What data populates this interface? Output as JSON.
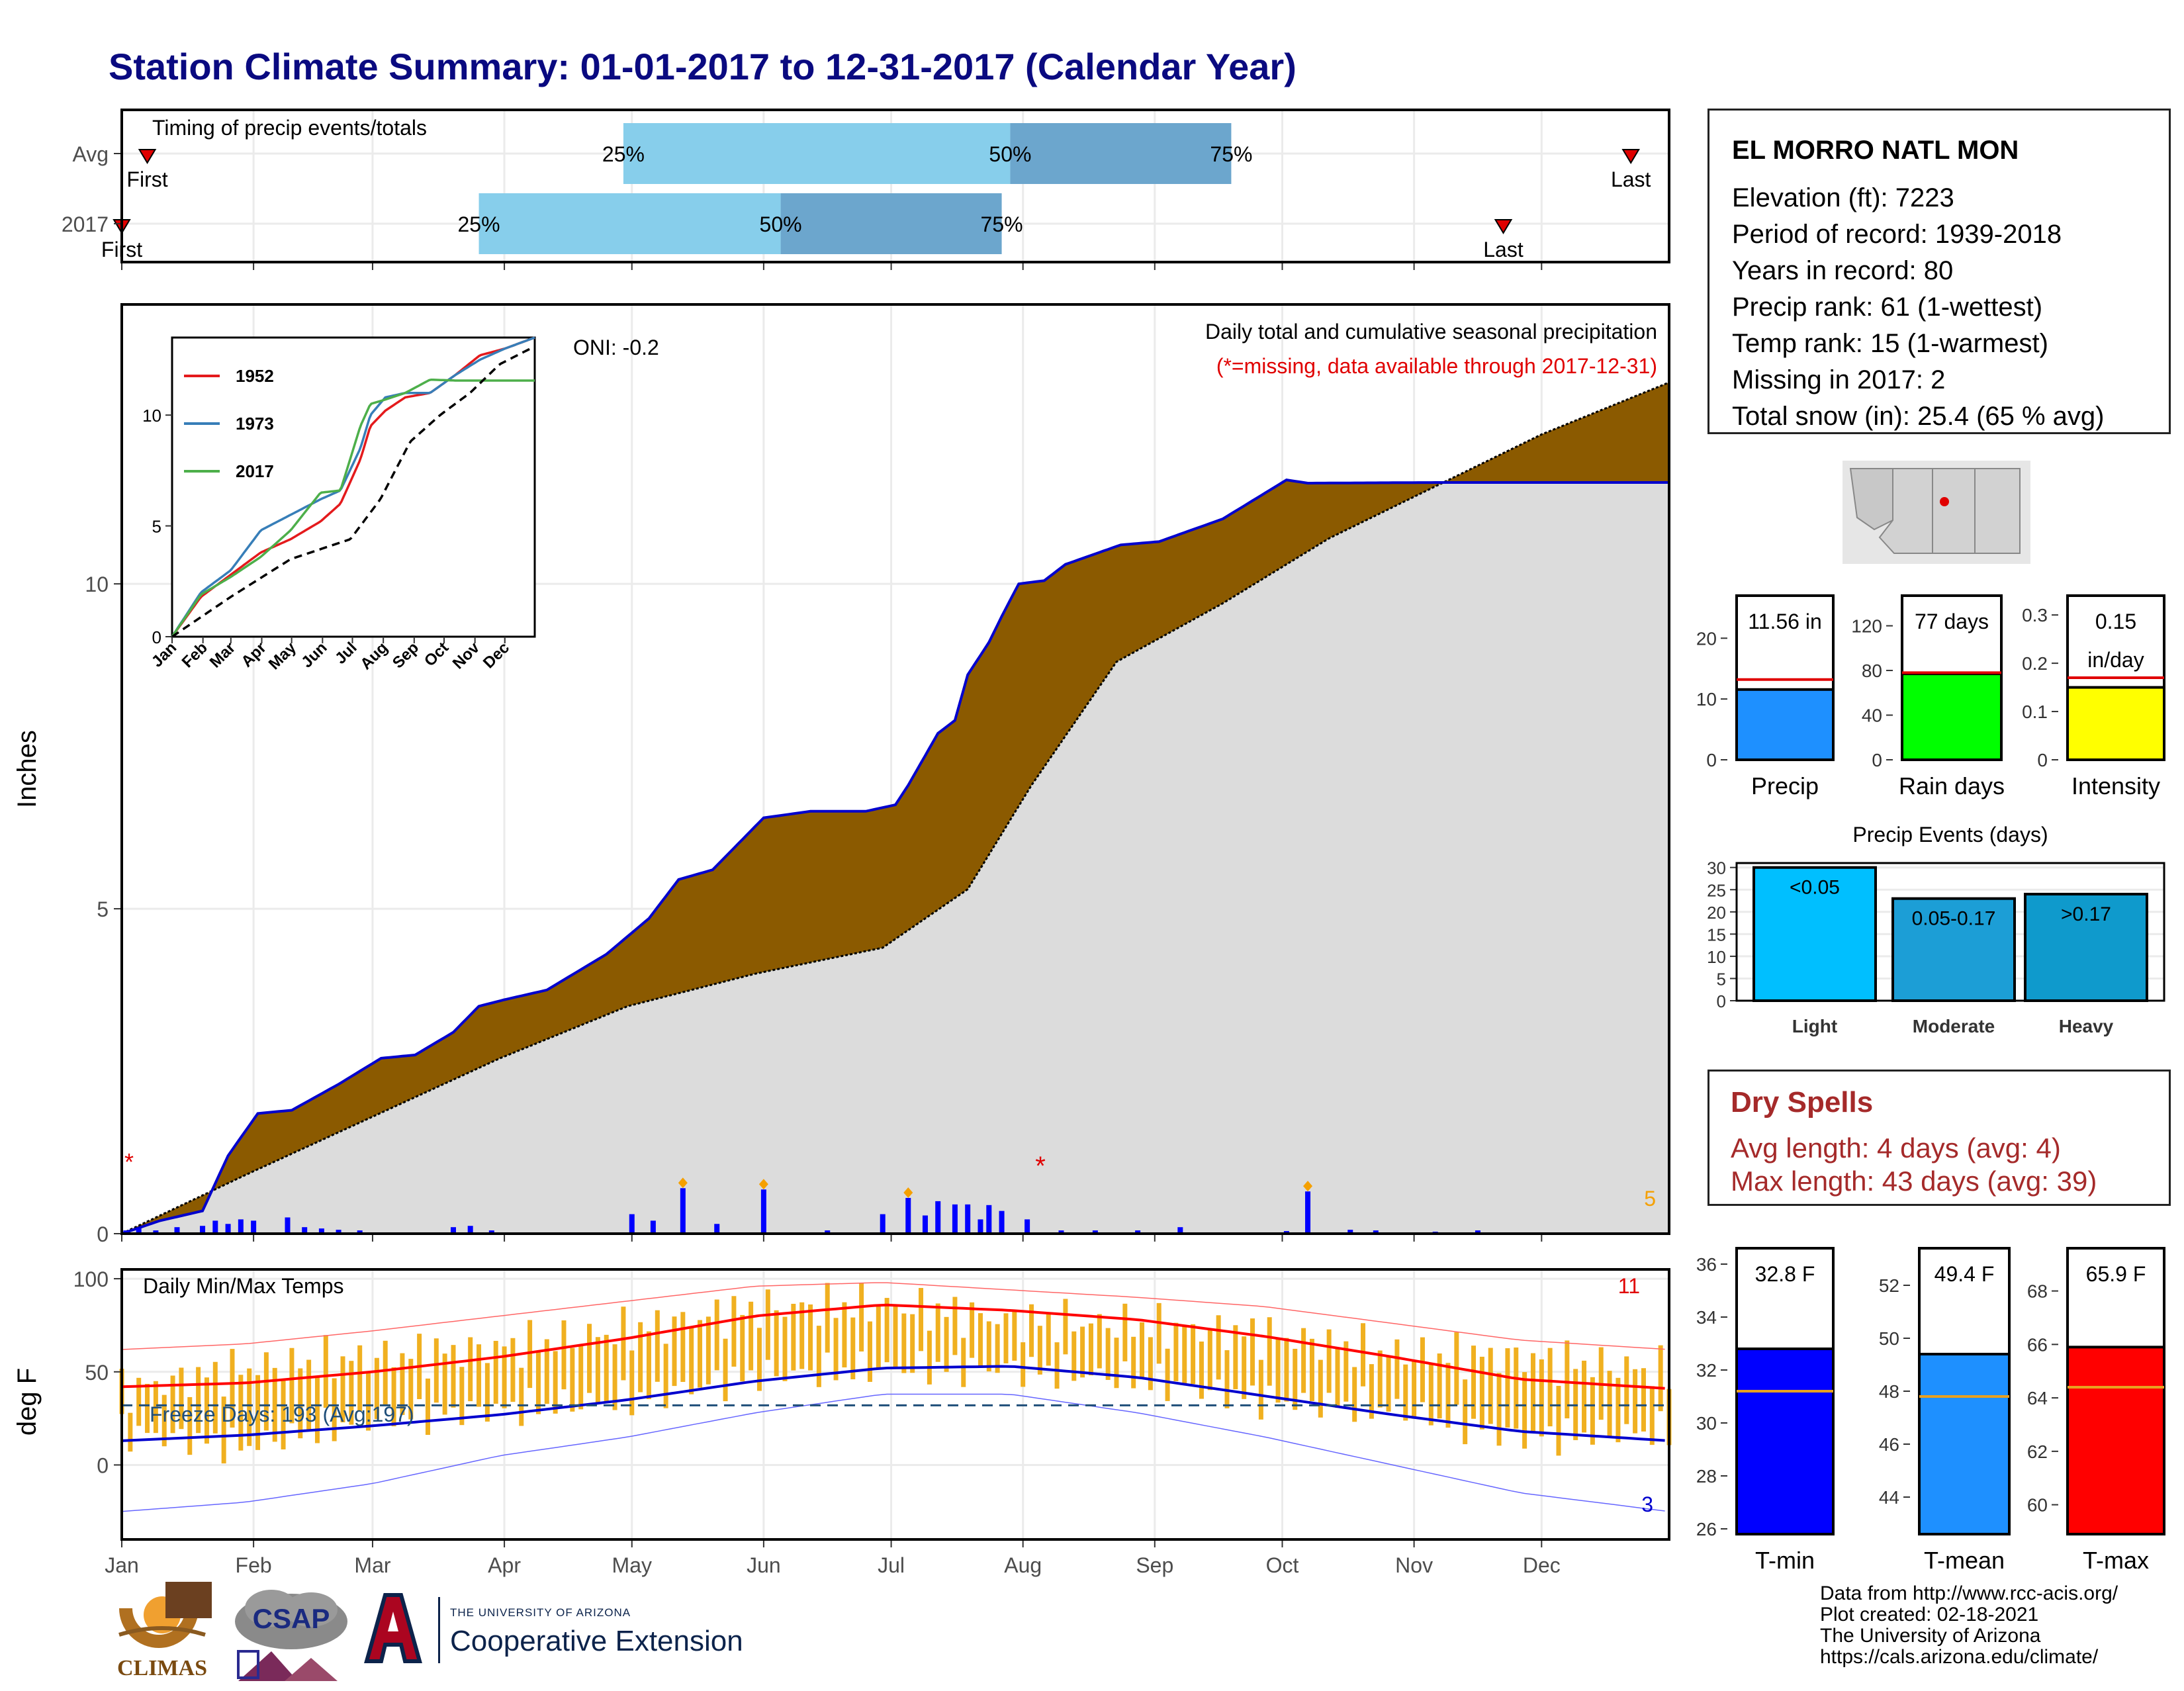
{
  "title": "Station Climate Summary: 01-01-2017 to 12-31-2017 (Calendar Year)",
  "station": {
    "name": "EL MORRO NATL MON",
    "lines": [
      "Elevation (ft): 7223",
      "Period of record: 1939-2018",
      "Years in record: 80",
      "Precip rank: 61 (1-wettest)",
      "Temp rank: 15 (1-warmest)",
      "Missing in 2017: 2",
      "Total snow (in): 25.4 (65 % avg)"
    ]
  },
  "timing": {
    "title": "Timing of precip events/totals",
    "rows": [
      {
        "label": "Avg",
        "first_label": "First",
        "last_label": "Last",
        "first_day": 7,
        "last_day": 356,
        "p25_label": "25%",
        "p50_label": "50%",
        "p75_label": "75%",
        "p25": 119,
        "p50": 210,
        "p75": 262
      },
      {
        "label": "2017",
        "first_label": "First",
        "last_label": "Last",
        "first_day": 1,
        "last_day": 326,
        "p25_label": "25%",
        "p50_label": "50%",
        "p75_label": "75%",
        "p25": 85,
        "p50": 156,
        "p75": 208
      }
    ]
  },
  "colors": {
    "title": "#0a0a80",
    "bar_light": "#87ceeb",
    "bar_dark": "#6ca6cd",
    "above_avg": "#008000",
    "below_avg": "#8b5a00",
    "climatology": "#dcdcdc",
    "cumulative_line": "#0000cd",
    "daily_bars": "#0000ff",
    "snow": "#6ec6ff",
    "temp_range": "#f0b020",
    "tmax": "#ff0000",
    "tmin": "#0000cd",
    "gauge_precip": "#1e90ff",
    "gauge_raindays": "#00ff00",
    "gauge_intensity": "#ffff00",
    "event_light": "#00bfff",
    "event_moderate": "#1c9ed6",
    "event_heavy": "#0f9acc",
    "tmin_bar": "#0000ff",
    "tmean_bar": "#1e90ff",
    "tmax_bar": "#ff0000",
    "avg_line": "#e8a020"
  },
  "precip_panel": {
    "ylabel": "Inches",
    "caption1": "Daily total and cumulative seasonal precipitation",
    "caption2": "(*=missing, data available through 2017-12-31)",
    "oni": "ONI: -0.2",
    "right_count": "5",
    "missing_mark": "*"
  },
  "temp_panel": {
    "ylabel": "deg F",
    "caption": "Daily Min/Max Temps",
    "freeze": "Freeze Days: 193 (Avg:197)",
    "max_count": "11",
    "min_count": "3"
  },
  "x_month_labels": [
    "Jan",
    "Feb",
    "Mar",
    "Apr",
    "May",
    "Jun",
    "Jul",
    "Aug",
    "Sep",
    "Oct",
    "Nov",
    "Dec"
  ],
  "chart_data": [
    {
      "type": "area",
      "name": "cumulative precipitation",
      "x_unit": "day of year 2017",
      "ylim": [
        0,
        14.3
      ],
      "yticks": [
        0,
        5,
        10
      ],
      "observed_2017": {
        "x": [
          1,
          10,
          20,
          26,
          33,
          41,
          52,
          62,
          70,
          79,
          85,
          91,
          101,
          115,
          125,
          132,
          140,
          152,
          163,
          176,
          183,
          186,
          193,
          197,
          200,
          205,
          208,
          212,
          218,
          223,
          236,
          245,
          260,
          275,
          280,
          310,
          365
        ],
        "y": [
          0.0,
          0.2,
          0.35,
          1.2,
          1.85,
          1.9,
          2.3,
          2.7,
          2.75,
          3.1,
          3.5,
          3.6,
          3.75,
          4.3,
          4.85,
          5.45,
          5.6,
          6.4,
          6.5,
          6.5,
          6.6,
          6.9,
          7.7,
          7.9,
          8.6,
          9.1,
          9.5,
          10.0,
          10.05,
          10.3,
          10.6,
          10.65,
          11.0,
          11.6,
          11.55,
          11.56,
          11.56
        ]
      },
      "average": {
        "x": [
          1,
          30,
          60,
          90,
          120,
          150,
          180,
          200,
          215,
          235,
          260,
          285,
          310,
          335,
          365
        ],
        "y": [
          0.0,
          0.9,
          1.8,
          2.7,
          3.5,
          4.0,
          4.4,
          5.3,
          6.9,
          8.8,
          9.7,
          10.7,
          11.5,
          12.3,
          13.1
        ]
      },
      "legend": [
        {
          "text": "Daily total and cumulative seasonal precipitation"
        }
      ],
      "daily_precip": {
        "x": [
          2,
          5,
          9,
          14,
          20,
          23,
          26,
          29,
          32,
          40,
          44,
          48,
          52,
          57,
          79,
          83,
          88,
          121,
          126,
          133,
          141,
          152,
          167,
          180,
          186,
          190,
          193,
          197,
          200,
          203,
          205,
          208,
          214,
          222,
          230,
          240,
          250,
          275,
          280,
          290,
          296,
          310,
          320
        ],
        "y": [
          0.05,
          0.08,
          0.05,
          0.1,
          0.12,
          0.2,
          0.15,
          0.22,
          0.2,
          0.25,
          0.1,
          0.08,
          0.06,
          0.05,
          0.1,
          0.12,
          0.05,
          0.3,
          0.2,
          0.7,
          0.15,
          0.68,
          0.05,
          0.3,
          0.55,
          0.28,
          0.5,
          0.45,
          0.45,
          0.22,
          0.44,
          0.35,
          0.22,
          0.05,
          0.05,
          0.05,
          0.1,
          0.04,
          0.65,
          0.06,
          0.05,
          0.03,
          0.05
        ]
      }
    },
    {
      "type": "line",
      "name": "cumulative precipitation inset",
      "ylim": [
        0,
        13.5
      ],
      "yticks": [
        0,
        5,
        10
      ],
      "x_tick_labels": [
        "Jan",
        "Feb",
        "Mar",
        "Apr",
        "May",
        "Jun",
        "Jul",
        "Aug",
        "Sep",
        "Oct",
        "Nov",
        "Dec"
      ],
      "series": [
        {
          "name": "1952",
          "color": "#e41a1c",
          "x": [
            1,
            30,
            60,
            90,
            120,
            150,
            170,
            190,
            200,
            215,
            235,
            260,
            285,
            310,
            335,
            365
          ],
          "y": [
            0.0,
            1.8,
            2.8,
            3.8,
            4.4,
            5.2,
            6.0,
            8.0,
            9.5,
            10.2,
            10.8,
            11.0,
            11.8,
            12.7,
            13.0,
            13.5
          ]
        },
        {
          "name": "1973",
          "color": "#377eb8",
          "x": [
            1,
            30,
            60,
            90,
            120,
            150,
            170,
            190,
            200,
            215,
            235,
            260,
            285,
            310,
            335,
            365
          ],
          "y": [
            0.0,
            2.0,
            3.0,
            4.8,
            5.5,
            6.2,
            6.6,
            8.5,
            10.0,
            10.8,
            11.0,
            11.0,
            11.8,
            12.5,
            13.0,
            13.5
          ]
        },
        {
          "name": "2017",
          "color": "#4daf4a",
          "x": [
            1,
            30,
            60,
            90,
            120,
            150,
            170,
            190,
            200,
            215,
            235,
            260,
            285,
            310,
            335,
            365
          ],
          "y": [
            0.0,
            1.9,
            2.7,
            3.6,
            4.8,
            6.5,
            6.6,
            9.5,
            10.5,
            10.7,
            11.0,
            11.6,
            11.56,
            11.56,
            11.56,
            11.56
          ]
        },
        {
          "name": "",
          "color": "#000000",
          "x": [
            1,
            60,
            120,
            180,
            210,
            240,
            270,
            300,
            330,
            365
          ],
          "y": [
            0.0,
            1.8,
            3.5,
            4.4,
            6.2,
            8.8,
            10.0,
            11.0,
            12.3,
            13.1
          ]
        }
      ]
    },
    {
      "type": "line",
      "name": "daily min/max temperatures",
      "ylim": [
        -40,
        105
      ],
      "yticks": [
        0,
        50,
        100
      ],
      "freeze_line": 32,
      "x": [
        1,
        30,
        60,
        90,
        120,
        150,
        180,
        210,
        240,
        270,
        300,
        330,
        365
      ],
      "series": [
        {
          "name": "tmax_avg",
          "color": "#ff0000",
          "y": [
            42,
            44,
            50,
            58,
            68,
            80,
            86,
            83,
            78,
            69,
            58,
            46,
            41
          ]
        },
        {
          "name": "tmin_avg",
          "color": "#0000cd",
          "y": [
            13,
            16,
            21,
            27,
            35,
            45,
            52,
            53,
            47,
            37,
            27,
            18,
            13
          ]
        },
        {
          "name": "tmax_record",
          "color": "#ff6666",
          "y": [
            62,
            65,
            72,
            80,
            88,
            96,
            98,
            94,
            90,
            85,
            76,
            67,
            62
          ]
        },
        {
          "name": "tmin_record",
          "color": "#6666ff",
          "y": [
            -25,
            -20,
            -10,
            5,
            15,
            28,
            38,
            38,
            28,
            15,
            0,
            -15,
            -25
          ]
        },
        {
          "name": "tmax_2017",
          "color": "#f0b020",
          "y": [
            40,
            52,
            58,
            63,
            72,
            84,
            86,
            78,
            75,
            70,
            60,
            58,
            50
          ]
        },
        {
          "name": "tmin_2017",
          "color": "#f0b020",
          "y": [
            18,
            10,
            25,
            30,
            35,
            48,
            52,
            52,
            46,
            35,
            30,
            15,
            18
          ]
        }
      ]
    },
    {
      "type": "bar",
      "name": "annual gauges",
      "categories": [
        "Precip",
        "Rain days",
        "Intensity"
      ],
      "values": [
        11.56,
        77,
        0.15
      ],
      "averages": [
        13.2,
        78,
        0.17
      ],
      "labels": [
        "11.56 in",
        "77 days",
        "0.15"
      ],
      "extra_label": "in/day",
      "ylims": [
        [
          0,
          27
        ],
        [
          0,
          147
        ],
        [
          0,
          0.34
        ]
      ],
      "yticks": [
        [
          0,
          10,
          20
        ],
        [
          0,
          40,
          80,
          120
        ],
        [
          0.0,
          0.1,
          0.2,
          0.3
        ]
      ]
    },
    {
      "type": "bar",
      "name": "precip events",
      "title": "Precip Events (days)",
      "categories": [
        "Light",
        "Moderate",
        "Heavy"
      ],
      "values": [
        30,
        23,
        24
      ],
      "labels": [
        "<0.05",
        "0.05-0.17",
        ">0.17"
      ],
      "ylim": [
        0,
        31
      ],
      "yticks": [
        0,
        5,
        10,
        15,
        20,
        25,
        30
      ]
    },
    {
      "type": "bar",
      "name": "mean temperatures",
      "categories": [
        "T-min",
        "T-mean",
        "T-max"
      ],
      "values": [
        32.8,
        49.4,
        65.9
      ],
      "averages": [
        31.2,
        47.8,
        64.4
      ],
      "labels": [
        "32.8 F",
        "49.4 F",
        "65.9 F"
      ],
      "ylims": [
        [
          25.8,
          36.6
        ],
        [
          42.6,
          53.4
        ],
        [
          58.9,
          69.6
        ]
      ],
      "yticks": [
        [
          26,
          28,
          30,
          32,
          34,
          36
        ],
        [
          44,
          46,
          48,
          50,
          52
        ],
        [
          60,
          62,
          64,
          66,
          68
        ]
      ]
    }
  ],
  "dry_spells": {
    "title": "Dry Spells",
    "avg": "Avg length: 4 days (avg: 4)",
    "max": "Max length: 43 days (avg: 39)"
  },
  "credits": [
    "Data from http://www.rcc-acis.org/",
    "Plot created: 02-18-2021",
    "The University of Arizona",
    "https://cals.arizona.edu/climate/"
  ],
  "logos": {
    "climas": "CLIMAS",
    "csap": "CSAP",
    "ua_small": "THE UNIVERSITY OF ARIZONA",
    "ua_big": "Cooperative Extension"
  }
}
